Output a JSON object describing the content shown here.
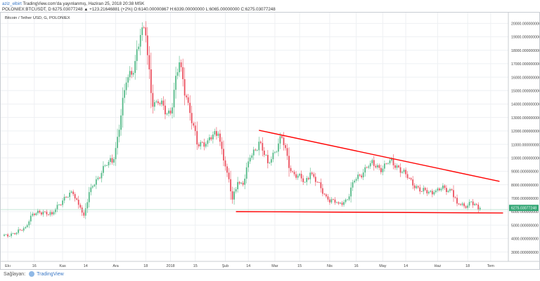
{
  "header": {
    "author": "aziz_elbirt",
    "publish_line": "TradingView.com'da yayınlanmış, Haziran 25, 2018 20:38 MSK",
    "ticker_line": "POLONIEX:BTCUSDT, D  6275.03077248  ▲ +123.21646881 (+2%)  O:6140.00000867  H:6339.00000000  L:6065.00000000  C:6275.03077248"
  },
  "chart_data": {
    "type": "candlestick",
    "title": "Bitcoin / Tether USD, G, POLONIEX",
    "last_price_label": "6275.03077248",
    "last_price": 6275.03,
    "prev_close_level": 6151.8,
    "ylim": [
      2300,
      20800
    ],
    "y_ticks": [
      3000,
      4000,
      5000,
      6000,
      7000,
      8000,
      9000,
      10000,
      11000,
      12000,
      13000,
      14000,
      15000,
      16000,
      17000,
      18000,
      19000,
      20000
    ],
    "y_tick_labels": [
      "3000.000000000",
      "4000.000000000",
      "5000.000000000",
      "6000.000000000",
      "7000.000000000",
      "8000.000000000",
      "9000.000000000",
      "10000.000000000",
      "11000.000000000",
      "12000.000000000",
      "13000.000000000",
      "14000.000000000",
      "15000.000000000",
      "16000.000000000",
      "17000.000000000",
      "18000.000000000",
      "19000.000000000",
      "20000.000000000"
    ],
    "x_ticks": [
      {
        "label": "Ekı",
        "date": "2017-10-01"
      },
      {
        "label": "16",
        "date": "2017-10-16"
      },
      {
        "label": "Kas",
        "date": "2017-11-01"
      },
      {
        "label": "14",
        "date": "2017-11-14"
      },
      {
        "label": "Ara",
        "date": "2017-12-01"
      },
      {
        "label": "18",
        "date": "2017-12-18"
      },
      {
        "label": "2018",
        "date": "2018-01-01"
      },
      {
        "label": "15",
        "date": "2018-01-15"
      },
      {
        "label": "Şub",
        "date": "2018-02-01"
      },
      {
        "label": "14",
        "date": "2018-02-14"
      },
      {
        "label": "Mar",
        "date": "2018-03-01"
      },
      {
        "label": "15",
        "date": "2018-03-15"
      },
      {
        "label": "Nis",
        "date": "2018-04-01"
      },
      {
        "label": "16",
        "date": "2018-04-16"
      },
      {
        "label": "May",
        "date": "2018-05-01"
      },
      {
        "label": "14",
        "date": "2018-05-14"
      },
      {
        "label": "Haz",
        "date": "2018-06-01"
      },
      {
        "label": "18",
        "date": "2018-06-18"
      },
      {
        "label": "Tem",
        "date": "2018-07-01"
      }
    ],
    "x_domain": [
      "2017-09-27",
      "2018-07-11"
    ],
    "trendlines": [
      {
        "name": "upper",
        "start": {
          "date": "2018-02-20",
          "value": 12050
        },
        "end": {
          "date": "2018-07-06",
          "value": 8250
        }
      },
      {
        "name": "lower",
        "start": {
          "date": "2018-02-07",
          "value": 6000
        },
        "end": {
          "date": "2018-07-08",
          "value": 5900
        }
      }
    ],
    "colors": {
      "up": "#53b987",
      "down": "#eb4d5c",
      "trend": "#ff0000",
      "grid": "#eef0f3",
      "price_tag": "#35a776"
    },
    "price_anchors": [
      {
        "date": "2017-09-28",
        "close": 4200
      },
      {
        "date": "2017-10-06",
        "close": 4420
      },
      {
        "date": "2017-10-11",
        "close": 4850
      },
      {
        "date": "2017-10-14",
        "close": 5700
      },
      {
        "date": "2017-10-21",
        "close": 6000
      },
      {
        "date": "2017-10-26",
        "close": 5800
      },
      {
        "date": "2017-11-02",
        "close": 7100
      },
      {
        "date": "2017-11-07",
        "close": 7300
      },
      {
        "date": "2017-11-11",
        "close": 6300
      },
      {
        "date": "2017-11-13",
        "close": 5700
      },
      {
        "date": "2017-11-17",
        "close": 7800
      },
      {
        "date": "2017-11-27",
        "close": 9700
      },
      {
        "date": "2017-11-30",
        "close": 9900
      },
      {
        "date": "2017-12-07",
        "close": 15600
      },
      {
        "date": "2017-12-12",
        "close": 17200
      },
      {
        "date": "2017-12-16",
        "close": 19700
      },
      {
        "date": "2017-12-18",
        "close": 19100
      },
      {
        "date": "2017-12-22",
        "close": 13800
      },
      {
        "date": "2017-12-24",
        "close": 14200
      },
      {
        "date": "2018-01-01",
        "close": 13300
      },
      {
        "date": "2018-01-06",
        "close": 17100
      },
      {
        "date": "2018-01-10",
        "close": 14500
      },
      {
        "date": "2018-01-16",
        "close": 11000
      },
      {
        "date": "2018-01-22",
        "close": 11300
      },
      {
        "date": "2018-01-28",
        "close": 11800
      },
      {
        "date": "2018-02-02",
        "close": 8900
      },
      {
        "date": "2018-02-05",
        "close": 6900
      },
      {
        "date": "2018-02-08",
        "close": 8200
      },
      {
        "date": "2018-02-11",
        "close": 8000
      },
      {
        "date": "2018-02-15",
        "close": 10000
      },
      {
        "date": "2018-02-20",
        "close": 11200
      },
      {
        "date": "2018-02-25",
        "close": 9600
      },
      {
        "date": "2018-03-05",
        "close": 11500
      },
      {
        "date": "2018-03-10",
        "close": 9000
      },
      {
        "date": "2018-03-18",
        "close": 8200
      },
      {
        "date": "2018-03-21",
        "close": 8900
      },
      {
        "date": "2018-03-31",
        "close": 6900
      },
      {
        "date": "2018-04-06",
        "close": 6600
      },
      {
        "date": "2018-04-11",
        "close": 6900
      },
      {
        "date": "2018-04-15",
        "close": 8300
      },
      {
        "date": "2018-04-24",
        "close": 9600
      },
      {
        "date": "2018-05-01",
        "close": 9200
      },
      {
        "date": "2018-05-05",
        "close": 9800
      },
      {
        "date": "2018-05-10",
        "close": 9300
      },
      {
        "date": "2018-05-15",
        "close": 8500
      },
      {
        "date": "2018-05-23",
        "close": 7500
      },
      {
        "date": "2018-05-30",
        "close": 7450
      },
      {
        "date": "2018-06-03",
        "close": 7700
      },
      {
        "date": "2018-06-09",
        "close": 7600
      },
      {
        "date": "2018-06-12",
        "close": 6600
      },
      {
        "date": "2018-06-16",
        "close": 6400
      },
      {
        "date": "2018-06-20",
        "close": 6750
      },
      {
        "date": "2018-06-24",
        "close": 6150
      },
      {
        "date": "2018-06-25",
        "close": 6275
      }
    ]
  },
  "footer": {
    "label": "Sağlayan:",
    "brand": "TradingView"
  }
}
